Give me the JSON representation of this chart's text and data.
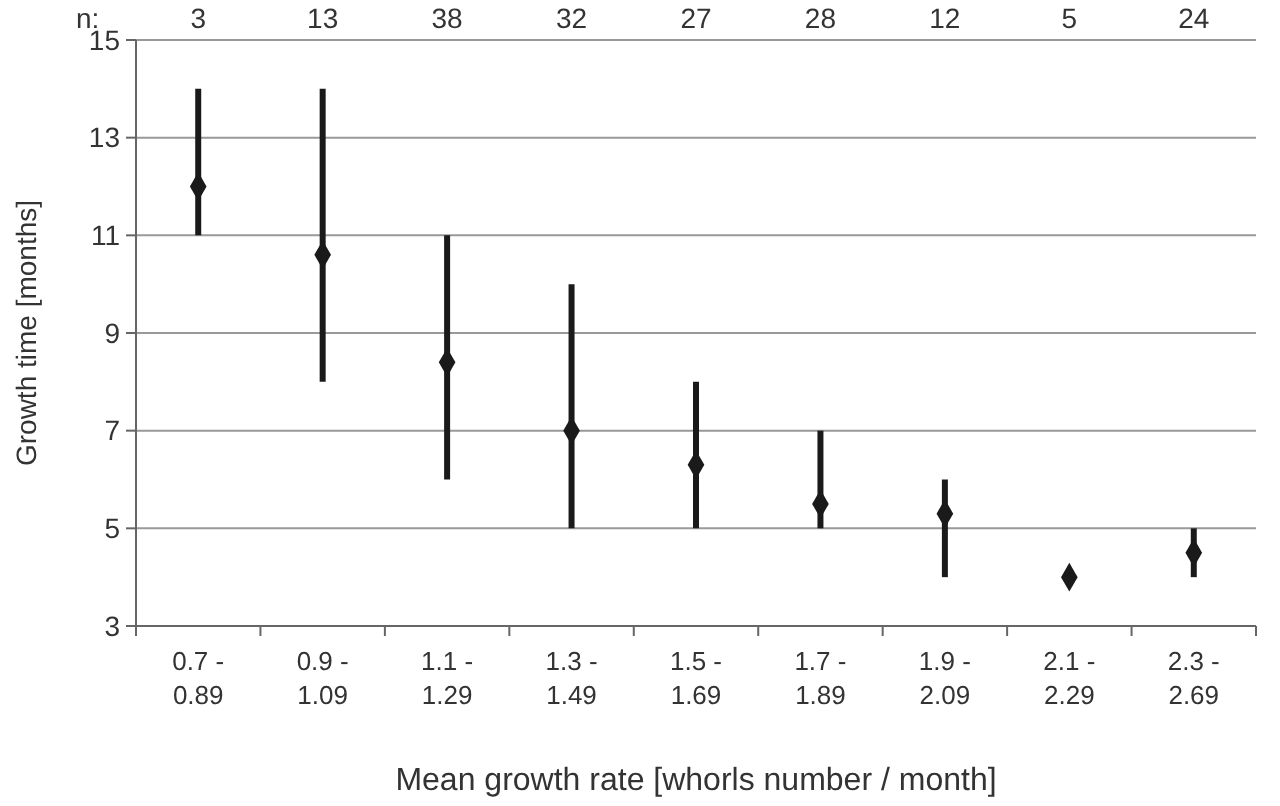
{
  "chart_data": {
    "type": "scatter",
    "xlabel": "Mean growth rate [whorls number / month]",
    "ylabel": "Growth time [months]",
    "categories": [
      "0.7 - 0.89",
      "0.9 - 1.09",
      "1.1 - 1.29",
      "1.3 - 1.49",
      "1.5 - 1.69",
      "1.7 - 1.89",
      "1.9 - 2.09",
      "2.1 - 2.29",
      "2.3 - 2.69"
    ],
    "values": [
      12,
      10.6,
      8.4,
      7,
      6.3,
      5.5,
      5.3,
      4,
      4.5
    ],
    "errors": [
      [
        11,
        14
      ],
      [
        8,
        14
      ],
      [
        6,
        11
      ],
      [
        5,
        10
      ],
      [
        5,
        8
      ],
      [
        5,
        7
      ],
      [
        4,
        6
      ],
      null,
      [
        4,
        5
      ]
    ],
    "color": "#1a1a1a",
    "marker": "diamond",
    "grid": "y",
    "ylim": [
      3,
      15
    ],
    "yticks": [
      3,
      5,
      7,
      9,
      11,
      13,
      15
    ],
    "annotations": [
      "n:",
      "3",
      "13",
      "38",
      "32",
      "27",
      "28",
      "12",
      "5",
      "24"
    ]
  }
}
